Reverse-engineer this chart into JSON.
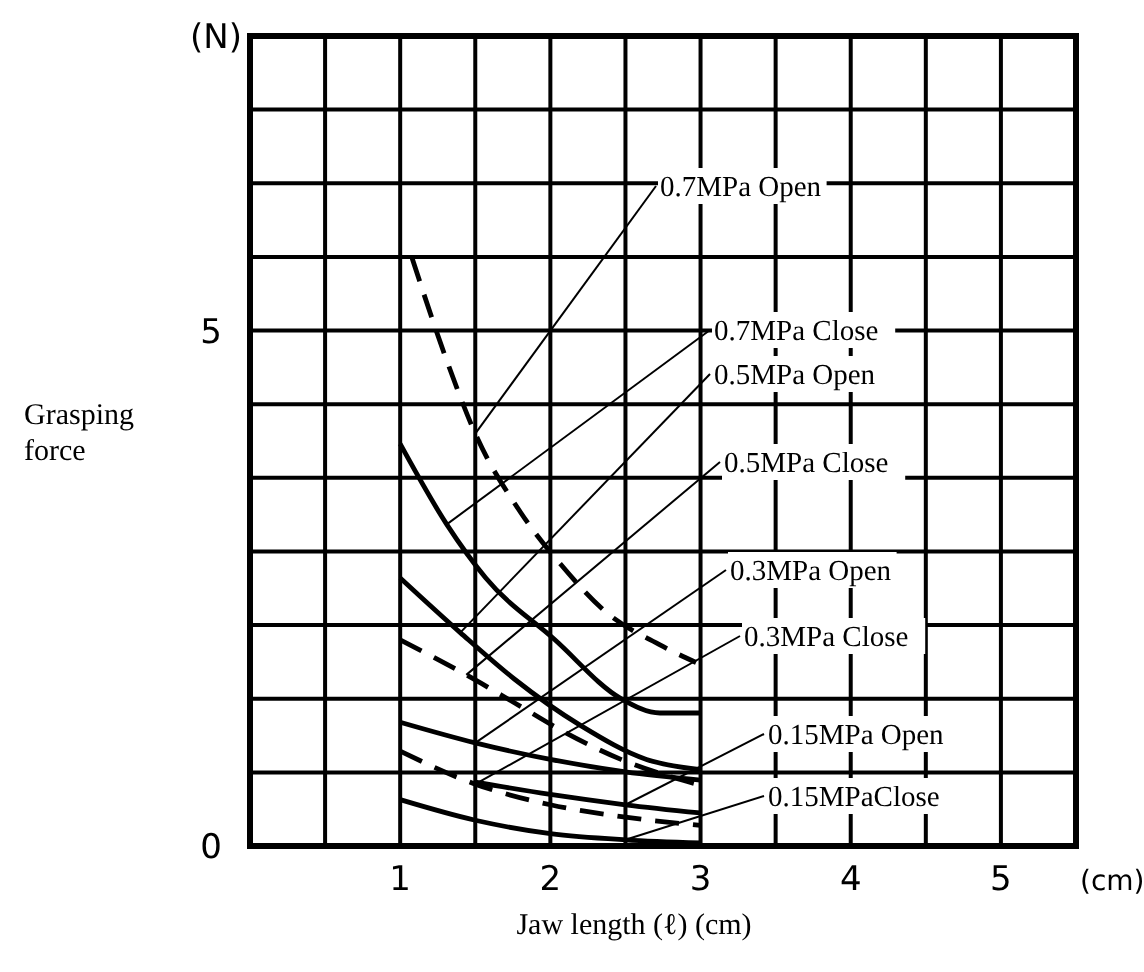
{
  "chart_data": {
    "type": "line",
    "xlabel": "Jaw length (ℓ)  (cm)",
    "ylabel": "Grasping force",
    "annotations": [
      "(N)",
      "(cm)"
    ],
    "xlim": [
      0,
      5.5
    ],
    "ylim": [
      0,
      7.857
    ],
    "xticks": [
      {
        "value": 0,
        "label": null
      },
      {
        "value": 0.5,
        "label": null
      },
      1,
      {
        "value": 1.5,
        "label": null
      },
      2,
      {
        "value": 2.5,
        "label": null
      },
      3,
      {
        "value": 3.5,
        "label": null
      },
      4,
      {
        "value": 4.5,
        "label": null
      },
      5
    ],
    "yticks": [
      0,
      {
        "value": 0.714,
        "label": null
      },
      {
        "value": 1.429,
        "label": null
      },
      {
        "value": 2.143,
        "label": null
      },
      {
        "value": 2.857,
        "label": null
      },
      {
        "value": 3.571,
        "label": null
      },
      {
        "value": 4.286,
        "label": null
      },
      5,
      {
        "value": 5.714,
        "label": null
      },
      {
        "value": 6.429,
        "label": null
      },
      {
        "value": 7.143,
        "label": null
      }
    ],
    "grid": true,
    "series": [
      {
        "name": "0.7MPa Open",
        "color": "#000000",
        "line_style": "dashed",
        "x": [
          1.08,
          1.3,
          1.5,
          1.8,
          2.07,
          2.37,
          2.73,
          2.97
        ],
        "values": [
          5.7,
          4.75,
          4.0,
          3.24,
          2.73,
          2.27,
          1.95,
          1.78
        ]
      },
      {
        "name": "0.7MPa Close",
        "color": "#000000",
        "line_style": "solid",
        "x": [
          1.0,
          1.31,
          1.57,
          2.03,
          2.47,
          2.73,
          3.0
        ],
        "values": [
          3.9,
          3.12,
          2.6,
          2.0,
          1.43,
          1.29,
          1.29
        ]
      },
      {
        "name": "0.5MPa Open",
        "color": "#000000",
        "line_style": "solid",
        "x": [
          1.0,
          1.4,
          1.76,
          2.2,
          2.64,
          3.0
        ],
        "values": [
          2.6,
          2.07,
          1.62,
          1.17,
          0.84,
          0.74
        ]
      },
      {
        "name": "0.5MPa Close",
        "color": "#000000",
        "line_style": "dashed",
        "x": [
          1.0,
          1.44,
          1.76,
          2.1,
          2.47,
          3.0
        ],
        "values": [
          2.0,
          1.66,
          1.39,
          1.1,
          0.84,
          0.59
        ]
      },
      {
        "name": "0.3MPa Open",
        "color": "#000000",
        "line_style": "solid",
        "x": [
          1.0,
          1.5,
          2.0,
          2.5,
          3.0
        ],
        "values": [
          1.2,
          1.0,
          0.84,
          0.72,
          0.64
        ]
      },
      {
        "name": "0.3MPa Close",
        "color": "#000000",
        "line_style": "dashed",
        "x": [
          1.0,
          1.5,
          2.0,
          2.5,
          3.0
        ],
        "values": [
          0.92,
          0.6,
          0.4,
          0.28,
          0.2
        ]
      },
      {
        "name": "0.15MPa Open",
        "color": "#000000",
        "line_style": "solid",
        "x": [
          1.5,
          2.0,
          2.5,
          3.0
        ],
        "values": [
          0.62,
          0.5,
          0.4,
          0.32
        ]
      },
      {
        "name": "0.15MPaClose",
        "color": "#000000",
        "line_style": "solid",
        "x": [
          1.0,
          1.5,
          2.0,
          2.5,
          3.0
        ],
        "values": [
          0.45,
          0.25,
          0.12,
          0.06,
          0.03
        ]
      }
    ]
  }
}
